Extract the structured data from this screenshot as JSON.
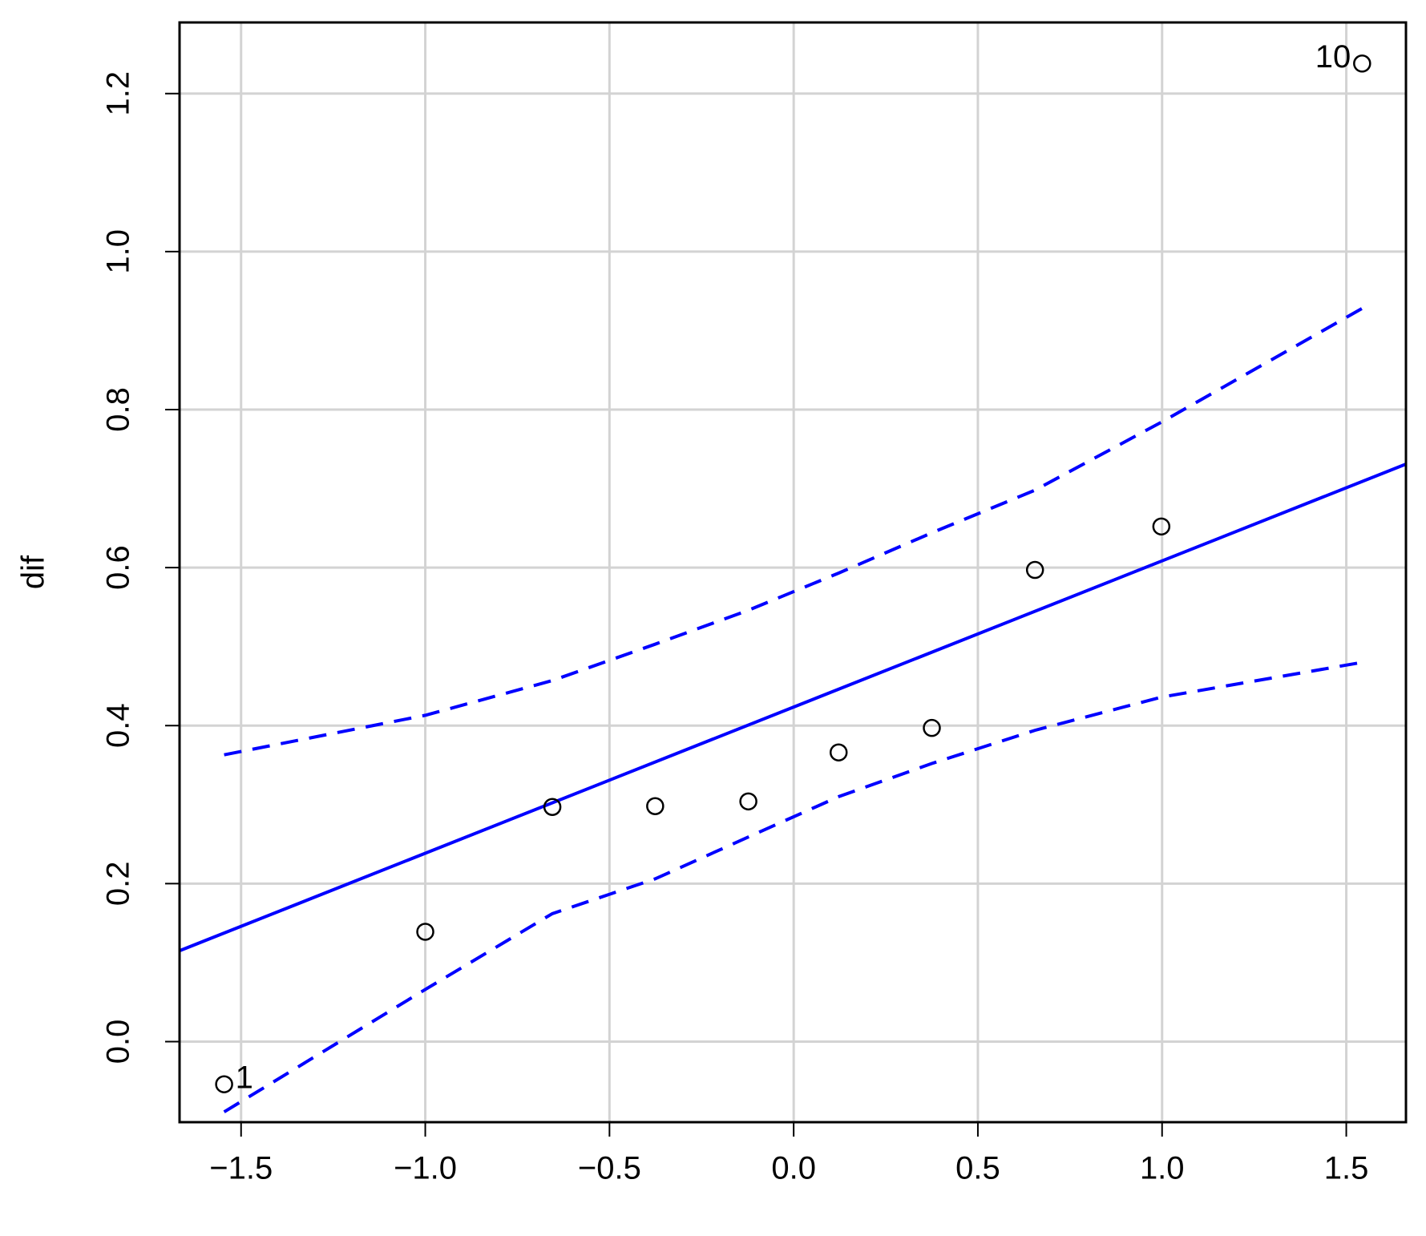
{
  "chart_data": {
    "type": "scatter",
    "ylabel": "dif",
    "xlim": [
      -1.667,
      1.662
    ],
    "ylim": [
      -0.102,
      1.29
    ],
    "xticks": [
      {
        "value": -1.5,
        "label": "−1.5"
      },
      {
        "value": -1.0,
        "label": "−1.0"
      },
      {
        "value": -0.5,
        "label": "−0.5"
      },
      {
        "value": 0,
        "label": "0.0"
      },
      0.5,
      {
        "value": 1,
        "label": "1.0"
      },
      1.5
    ],
    "yticks": [
      {
        "value": 0,
        "label": "0.0"
      },
      0.2,
      0.4,
      0.6,
      0.8,
      {
        "value": 1,
        "label": "1.0"
      },
      1.2
    ],
    "grid": true,
    "points": {
      "color": "#000000",
      "x": [
        -1.546,
        -1.0,
        -0.655,
        -0.376,
        -0.123,
        0.122,
        0.375,
        0.655,
        0.998,
        1.543
      ],
      "y": [
        -0.054,
        0.139,
        0.297,
        0.298,
        0.304,
        0.366,
        0.397,
        0.597,
        0.652,
        1.238
      ],
      "labels": [
        "1",
        null,
        null,
        null,
        null,
        null,
        null,
        null,
        null,
        "10"
      ]
    },
    "reference_line": {
      "color": "#0000ff",
      "x": [
        -1.667,
        1.662
      ],
      "y": [
        0.115,
        0.731
      ]
    },
    "envelope": {
      "color": "#0000ff",
      "x": [
        -1.546,
        -1.0,
        -0.655,
        -0.376,
        -0.123,
        0.122,
        0.375,
        0.655,
        0.998,
        1.543
      ],
      "upper": [
        0.363,
        0.413,
        0.457,
        0.503,
        0.546,
        0.593,
        0.644,
        0.698,
        0.784,
        0.928
      ],
      "lower": [
        -0.089,
        0.066,
        0.162,
        0.206,
        0.259,
        0.31,
        0.352,
        0.394,
        0.436,
        0.48
      ]
    }
  }
}
